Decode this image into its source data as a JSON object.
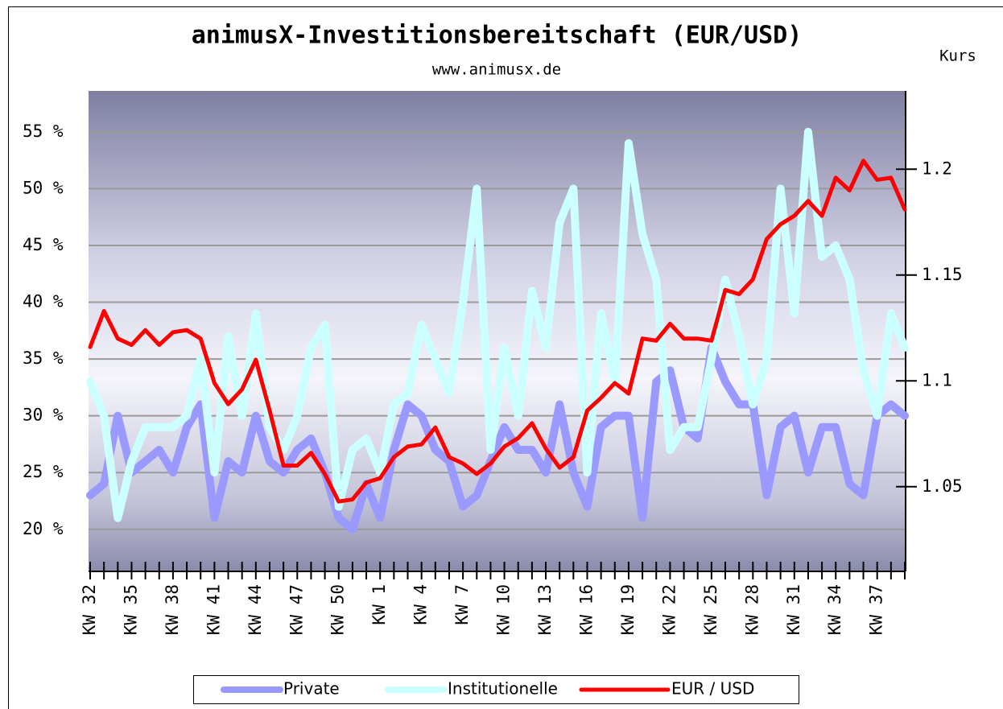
{
  "chart_data": {
    "type": "line",
    "title": "animusX-Investitionsbereitschaft (EUR/USD)",
    "subtitle": "www.animusx.de",
    "y2_label": "Kurs",
    "categories": [
      "KW 32",
      null,
      null,
      "KW 35",
      null,
      null,
      "KW 38",
      null,
      null,
      "KW 41",
      null,
      null,
      "KW 44",
      null,
      null,
      "KW 47",
      null,
      null,
      "KW 50",
      null,
      null,
      "KW 1",
      null,
      null,
      "KW 4",
      null,
      null,
      "KW 7",
      null,
      null,
      "KW 10",
      null,
      null,
      "KW 13",
      null,
      null,
      "KW 16",
      null,
      null,
      "KW 19",
      null,
      null,
      "KW 22",
      null,
      null,
      "KW 25",
      null,
      null,
      "KW 28",
      null,
      null,
      "KW 31",
      null,
      null,
      "KW 34",
      null,
      null,
      "KW 37",
      null,
      null
    ],
    "series": [
      {
        "name": "Private",
        "color": "#9999ff",
        "axis": "y",
        "values": [
          23,
          24,
          30,
          25,
          26,
          27,
          25,
          29,
          31,
          21,
          26,
          25,
          30,
          26,
          25,
          27,
          28,
          25,
          21,
          20,
          24,
          21,
          27,
          31,
          30,
          27,
          26,
          22,
          23,
          26,
          29,
          27,
          27,
          25,
          31,
          25,
          22,
          29,
          30,
          30,
          21,
          33,
          34,
          29,
          28,
          36,
          33,
          31,
          31,
          23,
          29,
          30,
          25,
          29,
          29,
          24,
          23,
          30,
          31,
          30
        ]
      },
      {
        "name": "Institutionelle",
        "color": "#ccffff",
        "axis": "y",
        "values": [
          33,
          30,
          21,
          26,
          29,
          29,
          29,
          30,
          35,
          25,
          37,
          30,
          39,
          29,
          27,
          30,
          36,
          38,
          22,
          27,
          28,
          25,
          31,
          32,
          38,
          35,
          32,
          40,
          50,
          27,
          36,
          30,
          41,
          36,
          47,
          50,
          25,
          39,
          33,
          54,
          46,
          42,
          27,
          29,
          29,
          35,
          42,
          37,
          31,
          35,
          50,
          39,
          55,
          44,
          45,
          42,
          34,
          30,
          39,
          36
        ]
      },
      {
        "name": "EUR / USD",
        "color": "#ff0000",
        "axis": "y2",
        "values": [
          1.116,
          1.133,
          1.12,
          1.117,
          1.124,
          1.117,
          1.123,
          1.124,
          1.12,
          1.099,
          1.089,
          1.096,
          1.11,
          1.086,
          1.06,
          1.06,
          1.066,
          1.056,
          1.043,
          1.044,
          1.052,
          1.054,
          1.064,
          1.069,
          1.07,
          1.078,
          1.064,
          1.061,
          1.056,
          1.061,
          1.069,
          1.073,
          1.08,
          1.068,
          1.059,
          1.064,
          1.086,
          1.092,
          1.099,
          1.094,
          1.12,
          1.119,
          1.127,
          1.12,
          1.12,
          1.119,
          1.143,
          1.141,
          1.148,
          1.167,
          1.174,
          1.178,
          1.185,
          1.178,
          1.196,
          1.19,
          1.204,
          1.195,
          1.196,
          1.181
        ]
      }
    ],
    "ylim": [
      16.3,
      58.6
    ],
    "yticks": [
      {
        "value": 20,
        "label": "20 %"
      },
      {
        "value": 25,
        "label": "25 %"
      },
      {
        "value": 30,
        "label": "30 %"
      },
      {
        "value": 35,
        "label": "35 %"
      },
      {
        "value": 40,
        "label": "40 %"
      },
      {
        "value": 45,
        "label": "45 %"
      },
      {
        "value": 50,
        "label": "50 %"
      },
      {
        "value": 55,
        "label": "55 %"
      }
    ],
    "y2lim": [
      1.01,
      1.237
    ],
    "y2ticks": [
      1.05,
      1.1,
      1.15,
      1.2
    ],
    "grid": true,
    "legend": "bottom"
  }
}
